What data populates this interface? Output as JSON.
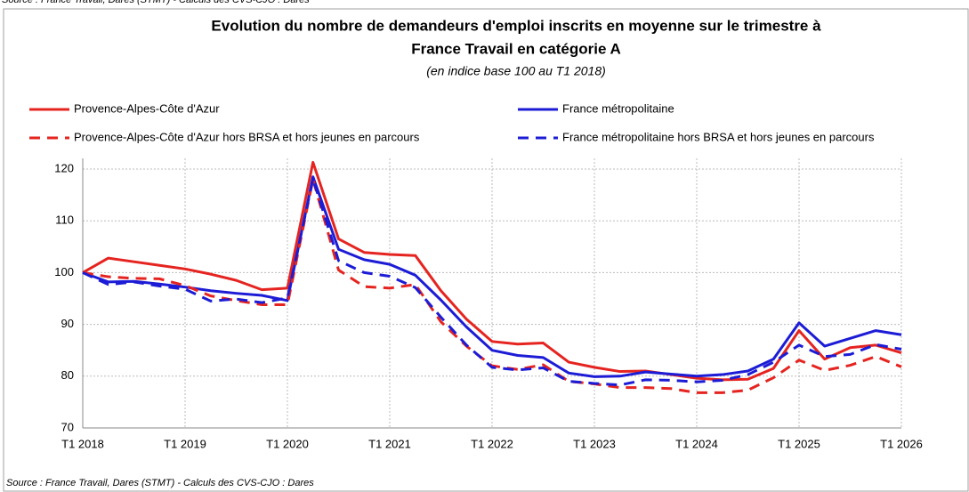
{
  "chart_data": {
    "type": "line",
    "title": "Evolution du nombre de demandeurs d'emploi inscrits en moyenne sur le trimestre à",
    "title_line2": "France Travail en catégorie A",
    "subtitle": "(en indice base 100 au T1 2018)",
    "source": "Source : France Travail, Dares (STMT) - Calculs des CVS-CJO : Dares",
    "categories": [
      "T1 2018",
      null,
      null,
      null,
      "T1 2019",
      null,
      null,
      null,
      "T1 2020",
      null,
      null,
      null,
      "T1 2021",
      null,
      null,
      null,
      "T1 2022",
      null,
      null,
      null,
      "T1 2023",
      null,
      null,
      null,
      "T1 2024",
      null,
      null,
      null,
      "T1 2025",
      null,
      null,
      null,
      "T1 2026"
    ],
    "ylim": [
      70,
      120
    ],
    "yticks": [
      70,
      80,
      90,
      100,
      110,
      120
    ],
    "grid": true,
    "series": [
      {
        "name": "Provence-Alpes-Côte d'Azur",
        "color": "#e52420",
        "dash": false,
        "values": [
          100,
          102.8,
          102.1,
          101.4,
          100.7,
          99.7,
          98.5,
          96.7,
          97,
          121.3,
          106.5,
          103.9,
          103.5,
          103.3,
          96.5,
          91,
          86.7,
          86.2,
          86.4,
          82.7,
          81.7,
          80.9,
          81,
          80.3,
          79.6,
          79.3,
          79.4,
          81.5,
          88.8,
          83.3,
          85.5,
          86,
          84.5
        ]
      },
      {
        "name": "France métropolitaine",
        "color": "#1c1cd6",
        "dash": false,
        "values": [
          100,
          98.2,
          98.3,
          97.8,
          97.2,
          96.5,
          96,
          95.6,
          94.6,
          118.5,
          104.5,
          102.5,
          101.6,
          99.5,
          94.7,
          89.5,
          85,
          84,
          83.6,
          80.6,
          79.9,
          80,
          80.8,
          80.4,
          80,
          80.3,
          81,
          83.3,
          90.3,
          85.8,
          87.3,
          88.8,
          88
        ]
      },
      {
        "name": "Provence-Alpes-Côte d'Azur hors BRSA et hors jeunes en parcours",
        "color": "#e52420",
        "dash": true,
        "values": [
          100,
          99.2,
          98.9,
          98.8,
          97.5,
          95.5,
          94.6,
          93.8,
          93.8,
          118,
          100.5,
          97.3,
          97,
          97.7,
          90.5,
          85.8,
          82,
          81.3,
          82.2,
          79,
          78.5,
          77.8,
          77.8,
          77.6,
          76.8,
          76.8,
          77.3,
          79.7,
          83.1,
          81.1,
          82.1,
          83.8,
          81.8
        ]
      },
      {
        "name": "France métropolitaine hors BRSA et hors jeunes en parcours",
        "color": "#1c1cd6",
        "dash": true,
        "values": [
          100,
          97.7,
          98.2,
          97.4,
          96.8,
          94.5,
          94.9,
          94.2,
          95.1,
          118.1,
          102.3,
          100,
          99.3,
          97.1,
          91.4,
          86,
          81.7,
          81.2,
          81.6,
          79,
          78.6,
          78.3,
          79.3,
          79.2,
          78.9,
          79.2,
          80.3,
          82.7,
          86,
          83.8,
          84.2,
          86.1,
          85.2
        ]
      }
    ]
  }
}
